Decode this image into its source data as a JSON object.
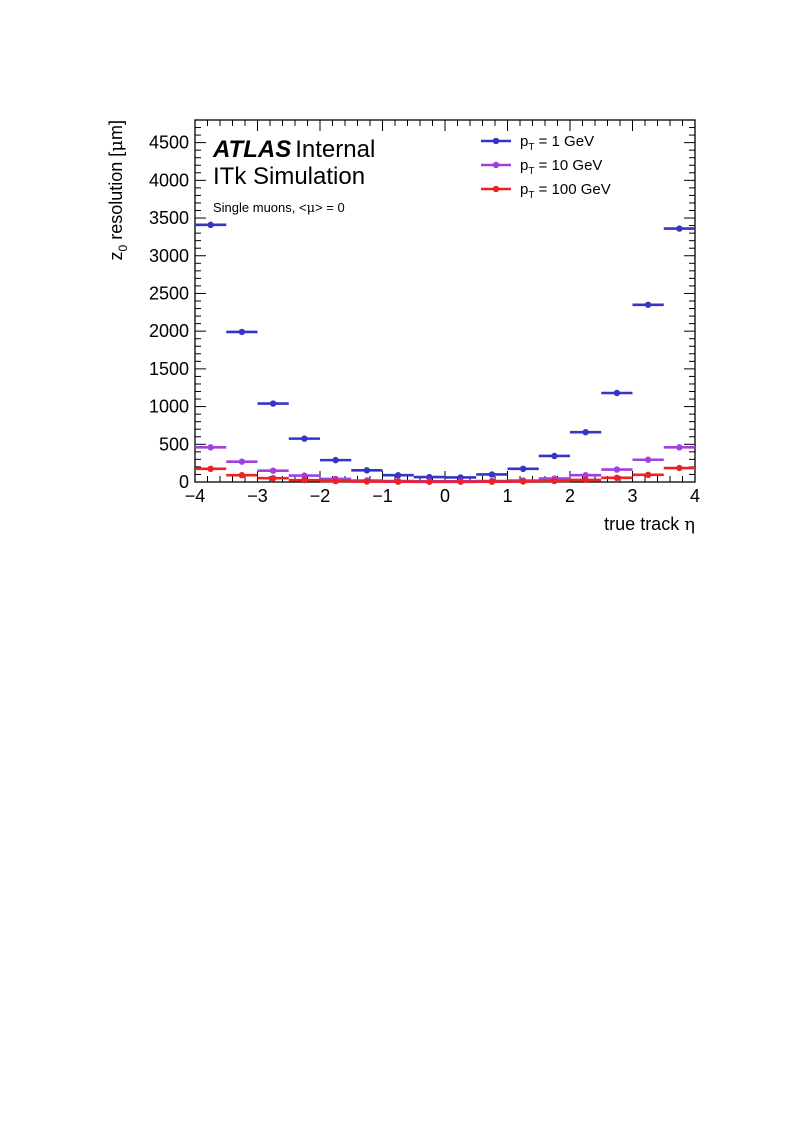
{
  "labels": {
    "experiment": "ATLAS",
    "status": "Internal",
    "subtitle": "ITk Simulation",
    "sample_prefix": "Single muons, <",
    "sample_mu": "μ",
    "sample_suffix": "> = 0"
  },
  "chart_data": {
    "type": "scatter",
    "xlabel_text": "true track ",
    "xlabel_symbol": "η",
    "ylabel_z": "z",
    "ylabel_sub": "0",
    "ylabel_rest": " resolution [",
    "ylabel_unit_mu": "μ",
    "ylabel_unit_rest": "m]",
    "xlim": [
      -4,
      4
    ],
    "ylim": [
      0,
      4800
    ],
    "x_ticks": [
      -4,
      -3,
      -2,
      -1,
      0,
      1,
      2,
      3,
      4
    ],
    "x_tick_labels": [
      "−4",
      "−3",
      "−2",
      "−1",
      "0",
      "1",
      "2",
      "3",
      "4"
    ],
    "y_ticks": [
      0,
      500,
      1000,
      1500,
      2000,
      2500,
      3000,
      3500,
      4000,
      4500
    ],
    "y_tick_labels": [
      "0",
      "500",
      "1000",
      "1500",
      "2000",
      "2500",
      "3000",
      "3500",
      "4000",
      "4500"
    ],
    "legend_position": "top-right",
    "bin_width": 0.5,
    "x": [
      -3.75,
      -3.25,
      -2.75,
      -2.25,
      -1.75,
      -1.25,
      -0.75,
      -0.25,
      0.25,
      0.75,
      1.25,
      1.75,
      2.25,
      2.75,
      3.25,
      3.75
    ],
    "series": [
      {
        "name_p": "p",
        "name_sub": "T",
        "name_rest": " = 1 GeV",
        "color": "#3535c8",
        "values": [
          3410,
          1990,
          1040,
          575,
          290,
          155,
          90,
          65,
          60,
          100,
          175,
          345,
          660,
          1180,
          2350,
          3360
        ]
      },
      {
        "name_p": "p",
        "name_sub": "T",
        "name_rest": " = 10 GeV",
        "color": "#a040e0",
        "values": [
          460,
          270,
          150,
          85,
          40,
          20,
          12,
          10,
          10,
          12,
          20,
          45,
          90,
          165,
          295,
          460
        ]
      },
      {
        "name_p": "p",
        "name_sub": "T",
        "name_rest": " = 100 GeV",
        "color": "#ee2222",
        "values": [
          175,
          90,
          50,
          25,
          12,
          6,
          4,
          3,
          3,
          4,
          6,
          14,
          28,
          55,
          95,
          185
        ]
      }
    ]
  }
}
